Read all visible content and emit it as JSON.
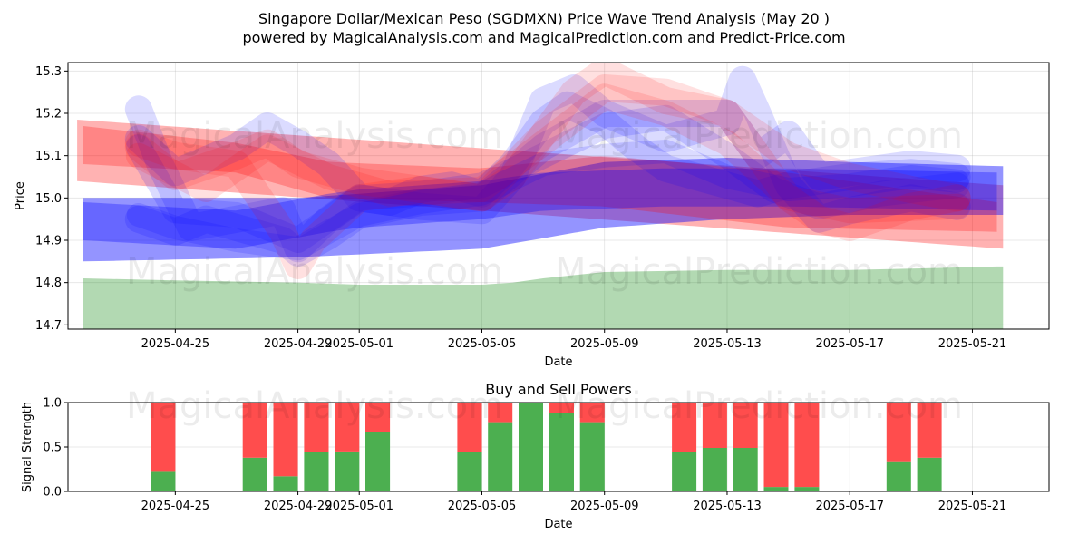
{
  "title_line1": "Singapore Dollar/Mexican Peso (SGDMXN) Price Wave Trend Analysis (May 20 )",
  "title_line2": "powered by MagicalAnalysis.com and MagicalPrediction.com and Predict-Price.com",
  "watermark": {
    "left": "MagicalAnalysis.com",
    "right": "MagicalPrediction.com"
  },
  "colors": {
    "red": "#ff0000",
    "blue": "#0000ff",
    "green": "#008000",
    "buy": "#4caf50",
    "sell": "#ff4d4d",
    "grid": "#b0b0b0"
  },
  "chart_data": [
    {
      "type": "area",
      "title": "",
      "xlabel": "Date",
      "ylabel": "Price",
      "x_range_days": [
        -3.5,
        28.5
      ],
      "ylim": [
        14.69,
        15.32
      ],
      "grid": true,
      "x_ticks": [
        {
          "label": "2025-04-25",
          "day": 0
        },
        {
          "label": "2025-04-29",
          "day": 4
        },
        {
          "label": "2025-05-01",
          "day": 6
        },
        {
          "label": "2025-05-05",
          "day": 10
        },
        {
          "label": "2025-05-09",
          "day": 14
        },
        {
          "label": "2025-05-13",
          "day": 18
        },
        {
          "label": "2025-05-17",
          "day": 22
        },
        {
          "label": "2025-05-21",
          "day": 26
        }
      ],
      "y_ticks": [
        "14.7",
        "14.8",
        "14.9",
        "15.0",
        "15.1",
        "15.2",
        "15.3"
      ],
      "y_tick_values": [
        14.7,
        14.8,
        14.9,
        15.0,
        15.1,
        15.2,
        15.3
      ],
      "support_band": {
        "x": [
          -3,
          0,
          4,
          6,
          10,
          11,
          12,
          14,
          18,
          22,
          24,
          26.8,
          27
        ],
        "y": [
          14.81,
          14.805,
          14.8,
          14.795,
          14.795,
          14.8,
          14.81,
          14.825,
          14.83,
          14.83,
          14.833,
          14.838,
          14.838
        ],
        "baseline": 14.69
      },
      "wave_bands": [
        {
          "color": "red",
          "alpha": 0.3,
          "x": [
            -3.2,
            27
          ],
          "upper": [
            15.185,
            15.03
          ],
          "lower": [
            15.04,
            14.88
          ]
        },
        {
          "color": "blue",
          "alpha": 0.42,
          "x": [
            -3,
            4,
            10,
            14,
            18,
            22,
            27
          ],
          "upper": [
            15.0,
            15.0,
            15.03,
            15.085,
            15.095,
            15.085,
            15.075
          ],
          "lower": [
            14.85,
            14.86,
            14.88,
            14.93,
            14.95,
            14.96,
            14.96
          ]
        },
        {
          "color": "red",
          "alpha": 0.25,
          "x": [
            -3,
            2,
            5,
            10,
            14,
            20,
            26.8
          ],
          "upper": [
            15.17,
            15.13,
            15.085,
            15.07,
            15.1,
            15.06,
            14.99
          ],
          "lower": [
            15.08,
            15.06,
            15.0,
            14.99,
            14.98,
            14.93,
            14.92
          ]
        },
        {
          "color": "blue",
          "alpha": 0.3,
          "x": [
            -3,
            2,
            5,
            6,
            10,
            12,
            16,
            20,
            26.8
          ],
          "upper": [
            14.99,
            14.97,
            15.01,
            15.02,
            15.04,
            15.06,
            15.07,
            15.07,
            15.06
          ],
          "lower": [
            14.9,
            14.88,
            14.92,
            14.93,
            14.95,
            14.97,
            14.98,
            14.98,
            14.97
          ]
        }
      ],
      "wave_lines": [
        {
          "color": "blue",
          "alpha": 0.14,
          "width": 30,
          "x": [
            -1.2,
            -0.5,
            0.5,
            2,
            3.5,
            4,
            5,
            6,
            7,
            8,
            9,
            10,
            11,
            12,
            12.8,
            14,
            15,
            16,
            17,
            18,
            19,
            20,
            22,
            24,
            25.5
          ],
          "y": [
            15.21,
            15.08,
            14.93,
            14.95,
            14.97,
            14.88,
            14.95,
            15.0,
            14.99,
            15.02,
            15.03,
            15.01,
            15.08,
            15.18,
            15.22,
            15.18,
            15.12,
            15.07,
            15.05,
            15.03,
            15.01,
            15.03,
            15.05,
            15.06,
            15.05
          ]
        },
        {
          "color": "blue",
          "alpha": 0.14,
          "width": 30,
          "x": [
            -1.2,
            0,
            2,
            3,
            4,
            5,
            6,
            8,
            10,
            11,
            12,
            13,
            14,
            16,
            18,
            18.5,
            19,
            20,
            21,
            22,
            24,
            25.5
          ],
          "y": [
            15.14,
            15.06,
            15.12,
            15.17,
            15.13,
            15.08,
            15.0,
            14.98,
            14.97,
            15.05,
            15.23,
            15.26,
            15.2,
            15.14,
            15.18,
            15.28,
            15.2,
            15.03,
            14.95,
            14.97,
            15.0,
            14.98
          ]
        },
        {
          "color": "blue",
          "alpha": 0.14,
          "width": 30,
          "x": [
            -1.2,
            0,
            1,
            2,
            3.5,
            4,
            5,
            6,
            8,
            10,
            12,
            14,
            16,
            18,
            19,
            20,
            21,
            22,
            24,
            25.5
          ],
          "y": [
            14.95,
            14.92,
            14.95,
            14.93,
            14.9,
            14.87,
            14.91,
            14.96,
            14.99,
            15.0,
            15.12,
            15.2,
            15.2,
            15.2,
            15.1,
            15.15,
            15.05,
            15.06,
            15.08,
            15.07
          ]
        },
        {
          "color": "blue",
          "alpha": 0.14,
          "width": 28,
          "x": [
            -1.2,
            0,
            2,
            4,
            5,
            6,
            8,
            10,
            12,
            14,
            16,
            18,
            19.5,
            21,
            23,
            25.5
          ],
          "y": [
            15.12,
            14.97,
            14.96,
            14.9,
            14.95,
            15.0,
            15.01,
            15.03,
            15.1,
            15.17,
            15.19,
            15.1,
            15.02,
            14.98,
            15.01,
            15.03
          ]
        },
        {
          "color": "red",
          "alpha": 0.12,
          "width": 30,
          "x": [
            -1.2,
            0,
            2,
            3,
            4,
            5,
            6,
            8,
            10,
            11,
            12,
            13,
            14,
            16,
            18,
            19,
            20,
            21,
            22,
            24,
            25.5
          ],
          "y": [
            15.12,
            15.05,
            15.1,
            15.13,
            15.08,
            15.06,
            15.04,
            15.02,
            15.0,
            15.05,
            15.15,
            15.25,
            15.3,
            15.23,
            15.2,
            15.1,
            15.0,
            14.95,
            14.93,
            14.98,
            15.0
          ]
        },
        {
          "color": "red",
          "alpha": 0.12,
          "width": 30,
          "x": [
            -1.2,
            0,
            2,
            3.5,
            4,
            4.5,
            6,
            8,
            10,
            12,
            14,
            16,
            18,
            20,
            22,
            24,
            25.5
          ],
          "y": [
            15.13,
            15.1,
            15.08,
            14.92,
            14.84,
            14.9,
            15.0,
            15.02,
            15.0,
            15.15,
            15.26,
            15.25,
            15.2,
            15.1,
            15.05,
            15.02,
            15.0
          ]
        },
        {
          "color": "red",
          "alpha": 0.12,
          "width": 28,
          "x": [
            -1.2,
            1,
            3,
            5,
            7,
            10,
            12,
            14,
            16,
            18,
            20,
            22,
            25.5
          ],
          "y": [
            15.1,
            15.02,
            15.12,
            15.05,
            15.01,
            15.02,
            15.13,
            15.24,
            15.2,
            15.13,
            15.0,
            14.97,
            14.98
          ]
        },
        {
          "color": "blue",
          "alpha": 0.14,
          "width": 26,
          "x": [
            -1.2,
            0,
            2,
            4,
            6,
            8,
            10,
            12,
            14,
            16,
            18,
            20,
            22,
            24,
            25.5
          ],
          "y": [
            14.96,
            14.93,
            14.9,
            14.88,
            14.96,
            14.99,
            15.01,
            15.08,
            15.1,
            15.11,
            15.05,
            15.02,
            15.03,
            15.05,
            15.04
          ]
        }
      ]
    },
    {
      "type": "bar",
      "title": "Buy and Sell Powers",
      "xlabel": "Date",
      "ylabel": "Signal Strength",
      "ylim": [
        0,
        1
      ],
      "x_ticks": [
        "2025-04-25",
        "2025-04-29",
        "2025-05-01",
        "2025-05-05",
        "2025-05-09",
        "2025-05-13",
        "2025-05-17",
        "2025-05-21"
      ],
      "x_tick_days": [
        0,
        4,
        6,
        10,
        14,
        18,
        22,
        26
      ],
      "y_ticks": [
        "0.0",
        "0.5",
        "1.0"
      ],
      "y_tick_values": [
        0,
        0.5,
        1.0
      ],
      "bar_width_days": 0.8,
      "bars": [
        {
          "day": -0.4,
          "buy": 0.22
        },
        {
          "day": 2.6,
          "buy": 0.38
        },
        {
          "day": 3.6,
          "buy": 0.17
        },
        {
          "day": 4.6,
          "buy": 0.44
        },
        {
          "day": 5.6,
          "buy": 0.45
        },
        {
          "day": 6.6,
          "buy": 0.67
        },
        {
          "day": 9.6,
          "buy": 0.44
        },
        {
          "day": 10.6,
          "buy": 0.78
        },
        {
          "day": 11.6,
          "buy": 1.0
        },
        {
          "day": 12.6,
          "buy": 0.88
        },
        {
          "day": 13.6,
          "buy": 0.78
        },
        {
          "day": 16.6,
          "buy": 0.44
        },
        {
          "day": 17.6,
          "buy": 0.49
        },
        {
          "day": 18.6,
          "buy": 0.49
        },
        {
          "day": 19.6,
          "buy": 0.05
        },
        {
          "day": 20.6,
          "buy": 0.05
        },
        {
          "day": 23.6,
          "buy": 0.33
        },
        {
          "day": 24.6,
          "buy": 0.38
        }
      ]
    }
  ]
}
